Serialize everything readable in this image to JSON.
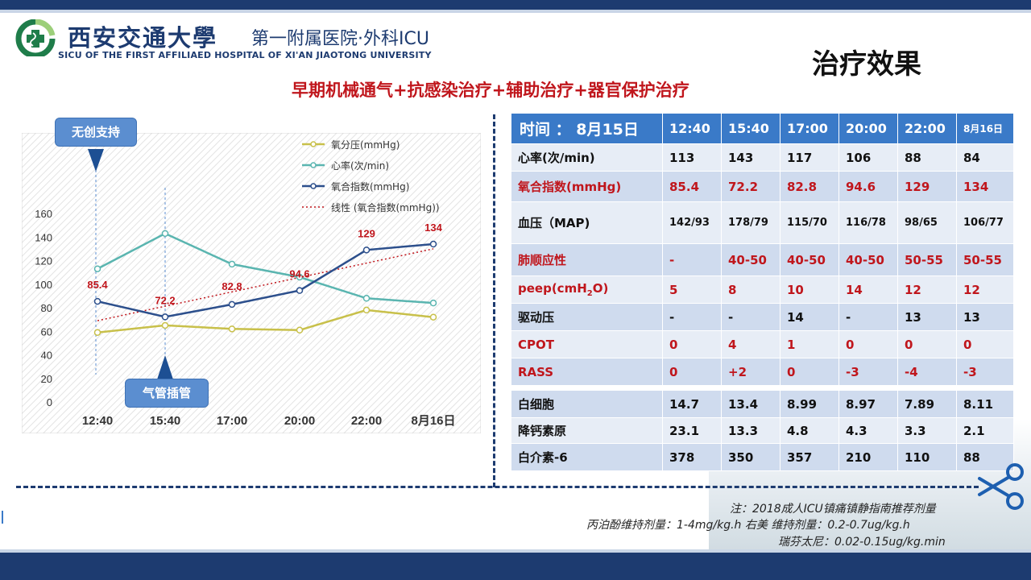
{
  "header": {
    "university_name": "西安交通大學",
    "hospital_name": "第一附属医院·外科ICU",
    "hospital_en": "SICU OF THE FIRST AFFILIAED HOSPITAL OF XI'AN JIAOTONG UNIVERSITY",
    "logo_icon": "hospital-cross-logo"
  },
  "page_title": "治疗效果",
  "subtitle": "早期机械通气+抗感染治疗+辅助治疗+器官保护治疗",
  "callouts": {
    "noninvasive": "无创支持",
    "intubation": "气管插管"
  },
  "chart_data": {
    "type": "line",
    "categories": [
      "12:40",
      "15:40",
      "17:00",
      "20:00",
      "22:00",
      "8月16日"
    ],
    "ylim": [
      0,
      160
    ],
    "yticks": [
      "0",
      "20",
      "40",
      "60",
      "80",
      "100",
      "120",
      "140",
      "160"
    ],
    "grid": false,
    "legend_position": "top-right",
    "series": [
      {
        "name": "氧分压(mmHg)",
        "values": [
          59,
          65,
          62,
          61,
          78,
          72
        ],
        "color": "#c8c04a"
      },
      {
        "name": "心率(次/min)",
        "values": [
          113,
          143,
          117,
          106,
          88,
          84
        ],
        "color": "#5ab5b0"
      },
      {
        "name": "氧合指数(mmHg)",
        "values": [
          85.4,
          72.2,
          82.8,
          94.6,
          129,
          134
        ],
        "color": "#2c4f8c"
      }
    ],
    "trendline": {
      "name": "线性 (氧合指数(mmHg))",
      "start": 69,
      "end": 130,
      "color": "#c0161c"
    },
    "data_labels": [
      "85.4",
      "72.2",
      "82.8",
      "94.6",
      "129",
      "134"
    ],
    "data_label_color": "#c0161c"
  },
  "table": {
    "header": [
      "时间 ： 8月15日",
      "12:40",
      "15:40",
      "17:00",
      "20:00",
      "22:00",
      "8月16日"
    ],
    "rows": [
      {
        "cells": [
          "心率(次/min)",
          "113",
          "143",
          "117",
          "106",
          "88",
          "84"
        ],
        "red": false
      },
      {
        "cells": [
          "氧合指数(mmHg)",
          "85.4",
          "72.2",
          "82.8",
          "94.6",
          "129",
          "134"
        ],
        "red": true
      },
      {
        "cells": [
          "血压（MAP)",
          "142/93",
          "178/79",
          "115/70",
          "116/78",
          "98/65",
          "106/77"
        ],
        "red": false
      },
      {
        "cells": [
          "肺顺应性",
          "-",
          "40-50",
          "40-50",
          "40-50",
          "50-55",
          "50-55"
        ],
        "red": true
      },
      {
        "cells": [
          "peep(cmH",
          "5",
          "8",
          "10",
          "14",
          "12",
          "12"
        ],
        "red": true
      },
      {
        "cells": [
          "驱动压",
          "-",
          "-",
          "14",
          "-",
          "13",
          "13"
        ],
        "red": false
      },
      {
        "cells": [
          "CPOT",
          "0",
          "4",
          "1",
          "0",
          "0",
          "0"
        ],
        "red": true
      },
      {
        "cells": [
          "RASS",
          "0",
          "+2",
          "0",
          "-3",
          "-4",
          "-3"
        ],
        "red": true
      }
    ],
    "peep_sub": "2",
    "peep_tail": "O)",
    "lab_rows": [
      {
        "cells": [
          "白细胞",
          "14.7",
          "13.4",
          "8.99",
          "8.97",
          "7.89",
          "8.11"
        ]
      },
      {
        "cells": [
          "降钙素原",
          "23.1",
          "13.3",
          "4.8",
          "4.3",
          "3.3",
          " 2.1"
        ]
      },
      {
        "cells": [
          "白介素-6",
          "378",
          "350",
          "357",
          "210",
          "110",
          "88"
        ]
      }
    ]
  },
  "notes": {
    "line1": "注：2018成人ICU镇痛镇静指南推荐剂量",
    "line2": "丙泊酚维持剂量：1-4mg/kg.h    右美 维持剂量：0.2-0.7ug/kg.h",
    "line3": "瑞芬太尼：0.02-0.15ug/kg.min"
  },
  "icons": {
    "scissors": "scissors-icon"
  }
}
